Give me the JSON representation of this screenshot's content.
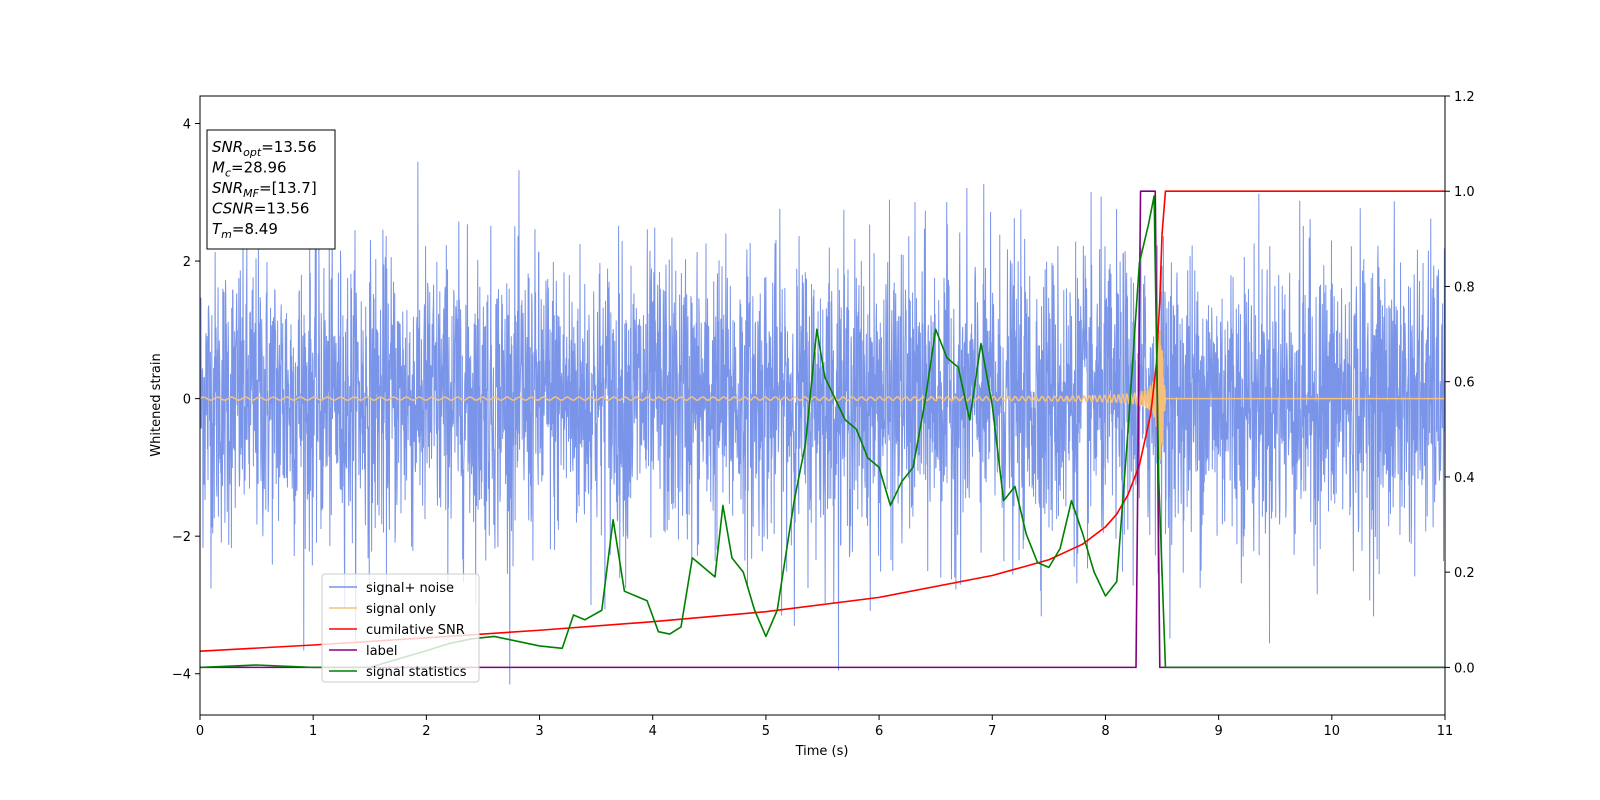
{
  "chart_data": {
    "type": "line",
    "xlabel": "Time (s)",
    "ylabel": "Whitened strain",
    "ylabel_right": "",
    "xlim": [
      0,
      11
    ],
    "ylim": [
      -4.6,
      4.4
    ],
    "ylim_right": [
      -0.1,
      1.2
    ],
    "x_ticks": [
      0,
      1,
      2,
      3,
      4,
      5,
      6,
      7,
      8,
      9,
      10,
      11
    ],
    "x_tick_labels": [
      "0",
      "1",
      "2",
      "3",
      "4",
      "5",
      "6",
      "7",
      "8",
      "9",
      "10",
      "11"
    ],
    "y_ticks": [
      -4,
      -2,
      0,
      2,
      4
    ],
    "y_tick_labels": [
      "−4",
      "−2",
      "0",
      "2",
      "4"
    ],
    "y_ticks_right": [
      0.0,
      0.2,
      0.4,
      0.6,
      0.8,
      1.0,
      1.2
    ],
    "y_tick_labels_right": [
      "0.0",
      "0.2",
      "0.4",
      "0.6",
      "0.8",
      "1.0",
      "1.2"
    ],
    "grid": false,
    "legend_position": "lower-left",
    "info_box": {
      "position": "top-left",
      "lines": [
        {
          "sym": "SNR",
          "sub": "opt",
          "val": "=13.56"
        },
        {
          "sym": "M",
          "sub": "c",
          "val": "=28.96"
        },
        {
          "sym": "SNR",
          "sub": "MF",
          "val": "=[13.7]"
        },
        {
          "sym": "CSNR",
          "sub": "",
          "val": "=13.56"
        },
        {
          "sym": "T",
          "sub": "m",
          "val": "=8.49"
        }
      ]
    },
    "series": [
      {
        "name": "signal+ noise",
        "axis": "left",
        "color": "#7994e8",
        "noise_std": 1.05,
        "noise_range": [
          -4.15,
          4.05
        ],
        "x_range": [
          0,
          11
        ],
        "merger_time": 8.49
      },
      {
        "name": "signal only",
        "axis": "left",
        "color": "#f5c07a",
        "chirp": {
          "start": 0,
          "merger_time": 8.49,
          "amp_start": 0.02,
          "amp_peak": 1.0,
          "ringdown_end": 8.53
        }
      },
      {
        "name": "cumilative SNR",
        "axis": "right",
        "color": "#ff0000",
        "x": [
          0,
          1,
          2,
          3,
          4,
          5,
          6,
          7,
          7.5,
          7.8,
          8.0,
          8.1,
          8.2,
          8.3,
          8.4,
          8.45,
          8.48,
          8.5,
          8.53,
          11
        ],
        "y": [
          0.034,
          0.047,
          0.062,
          0.078,
          0.096,
          0.117,
          0.147,
          0.193,
          0.226,
          0.259,
          0.295,
          0.322,
          0.363,
          0.425,
          0.532,
          0.638,
          0.77,
          0.91,
          1.0,
          1.0
        ]
      },
      {
        "name": "label",
        "axis": "right",
        "color": "#800080",
        "x": [
          0,
          8.27,
          8.31,
          8.44,
          8.48,
          11
        ],
        "y": [
          0,
          0,
          1.0,
          1.0,
          0,
          0
        ]
      },
      {
        "name": "signal statistics",
        "axis": "right",
        "color": "#008000",
        "x": [
          0,
          0.5,
          1.0,
          1.5,
          2.0,
          2.2,
          2.4,
          2.6,
          2.8,
          3.0,
          3.2,
          3.3,
          3.4,
          3.55,
          3.65,
          3.75,
          3.85,
          3.95,
          4.05,
          4.15,
          4.25,
          4.35,
          4.45,
          4.55,
          4.62,
          4.7,
          4.8,
          4.9,
          5.0,
          5.1,
          5.25,
          5.35,
          5.45,
          5.52,
          5.6,
          5.7,
          5.8,
          5.9,
          6.0,
          6.1,
          6.2,
          6.3,
          6.4,
          6.5,
          6.6,
          6.7,
          6.8,
          6.9,
          7.0,
          7.1,
          7.2,
          7.3,
          7.4,
          7.5,
          7.6,
          7.7,
          7.8,
          7.9,
          8.0,
          8.1,
          8.2,
          8.3,
          8.38,
          8.43,
          8.47,
          8.53,
          11
        ],
        "y": [
          0.0,
          0.005,
          0.0,
          0.0,
          0.035,
          0.05,
          0.06,
          0.065,
          0.055,
          0.045,
          0.04,
          0.11,
          0.1,
          0.12,
          0.31,
          0.16,
          0.15,
          0.14,
          0.075,
          0.07,
          0.085,
          0.23,
          0.21,
          0.19,
          0.34,
          0.23,
          0.2,
          0.12,
          0.065,
          0.12,
          0.35,
          0.47,
          0.71,
          0.61,
          0.57,
          0.52,
          0.5,
          0.44,
          0.42,
          0.34,
          0.39,
          0.42,
          0.55,
          0.71,
          0.65,
          0.63,
          0.52,
          0.68,
          0.55,
          0.35,
          0.38,
          0.28,
          0.22,
          0.21,
          0.25,
          0.35,
          0.28,
          0.2,
          0.15,
          0.18,
          0.5,
          0.85,
          0.93,
          0.99,
          0.4,
          0.0,
          0.0
        ]
      }
    ]
  }
}
